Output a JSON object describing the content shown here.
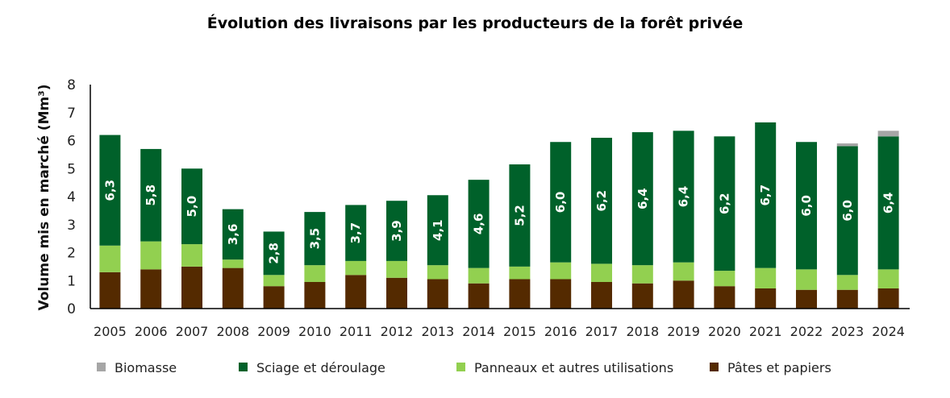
{
  "chart_data": {
    "type": "bar",
    "stacked": true,
    "title": "Évolution des livraisons par les producteurs de la forêt privée",
    "xlabel": "",
    "ylabel": "Volume mis en marché (Mm³)",
    "ylim": [
      0,
      8
    ],
    "yticks": [
      "0",
      "1",
      "2",
      "3",
      "4",
      "5",
      "6",
      "7",
      "8"
    ],
    "categories": [
      "2005",
      "2006",
      "2007",
      "2008",
      "2009",
      "2010",
      "2011",
      "2012",
      "2013",
      "2014",
      "2015",
      "2016",
      "2017",
      "2018",
      "2019",
      "2020",
      "2021",
      "2022",
      "2023",
      "2024"
    ],
    "series": [
      {
        "name": "Pâtes et papiers",
        "color": "#542a00",
        "values": [
          1.3,
          1.4,
          1.5,
          1.45,
          0.8,
          0.95,
          1.2,
          1.1,
          1.05,
          0.9,
          1.05,
          1.05,
          0.95,
          0.9,
          1.0,
          0.8,
          0.72,
          0.67,
          0.67,
          0.72
        ]
      },
      {
        "name": "Panneaux et autres utilisations",
        "color": "#92d050",
        "values": [
          0.95,
          1.0,
          0.8,
          0.3,
          0.4,
          0.6,
          0.5,
          0.6,
          0.5,
          0.55,
          0.45,
          0.6,
          0.65,
          0.65,
          0.65,
          0.55,
          0.73,
          0.73,
          0.53,
          0.68
        ]
      },
      {
        "name": "Sciage et déroulage",
        "color": "#00612a",
        "values": [
          3.95,
          3.3,
          2.7,
          1.8,
          1.55,
          1.9,
          2.0,
          2.15,
          2.5,
          3.15,
          3.65,
          4.3,
          4.5,
          4.75,
          4.7,
          4.8,
          5.2,
          4.55,
          4.6,
          4.75
        ]
      },
      {
        "name": "Biomasse",
        "color": "#a6a6a6",
        "values": [
          0,
          0,
          0,
          0,
          0,
          0,
          0,
          0,
          0,
          0,
          0,
          0,
          0,
          0,
          0,
          0,
          0,
          0,
          0.1,
          0.2
        ]
      }
    ],
    "total_labels": [
      "6,3",
      "5,8",
      "5,0",
      "3,6",
      "2,8",
      "3,5",
      "3,7",
      "3,9",
      "4,1",
      "4,6",
      "5,2",
      "6,0",
      "6,2",
      "6,4",
      "6,4",
      "6,2",
      "6,7",
      "6,0",
      "6,0",
      "6,4"
    ],
    "legend": [
      "Biomasse",
      "Sciage et déroulage",
      "Panneaux et autres utilisations",
      "Pâtes et papiers"
    ],
    "legend_position": "bottom",
    "grid": false
  }
}
